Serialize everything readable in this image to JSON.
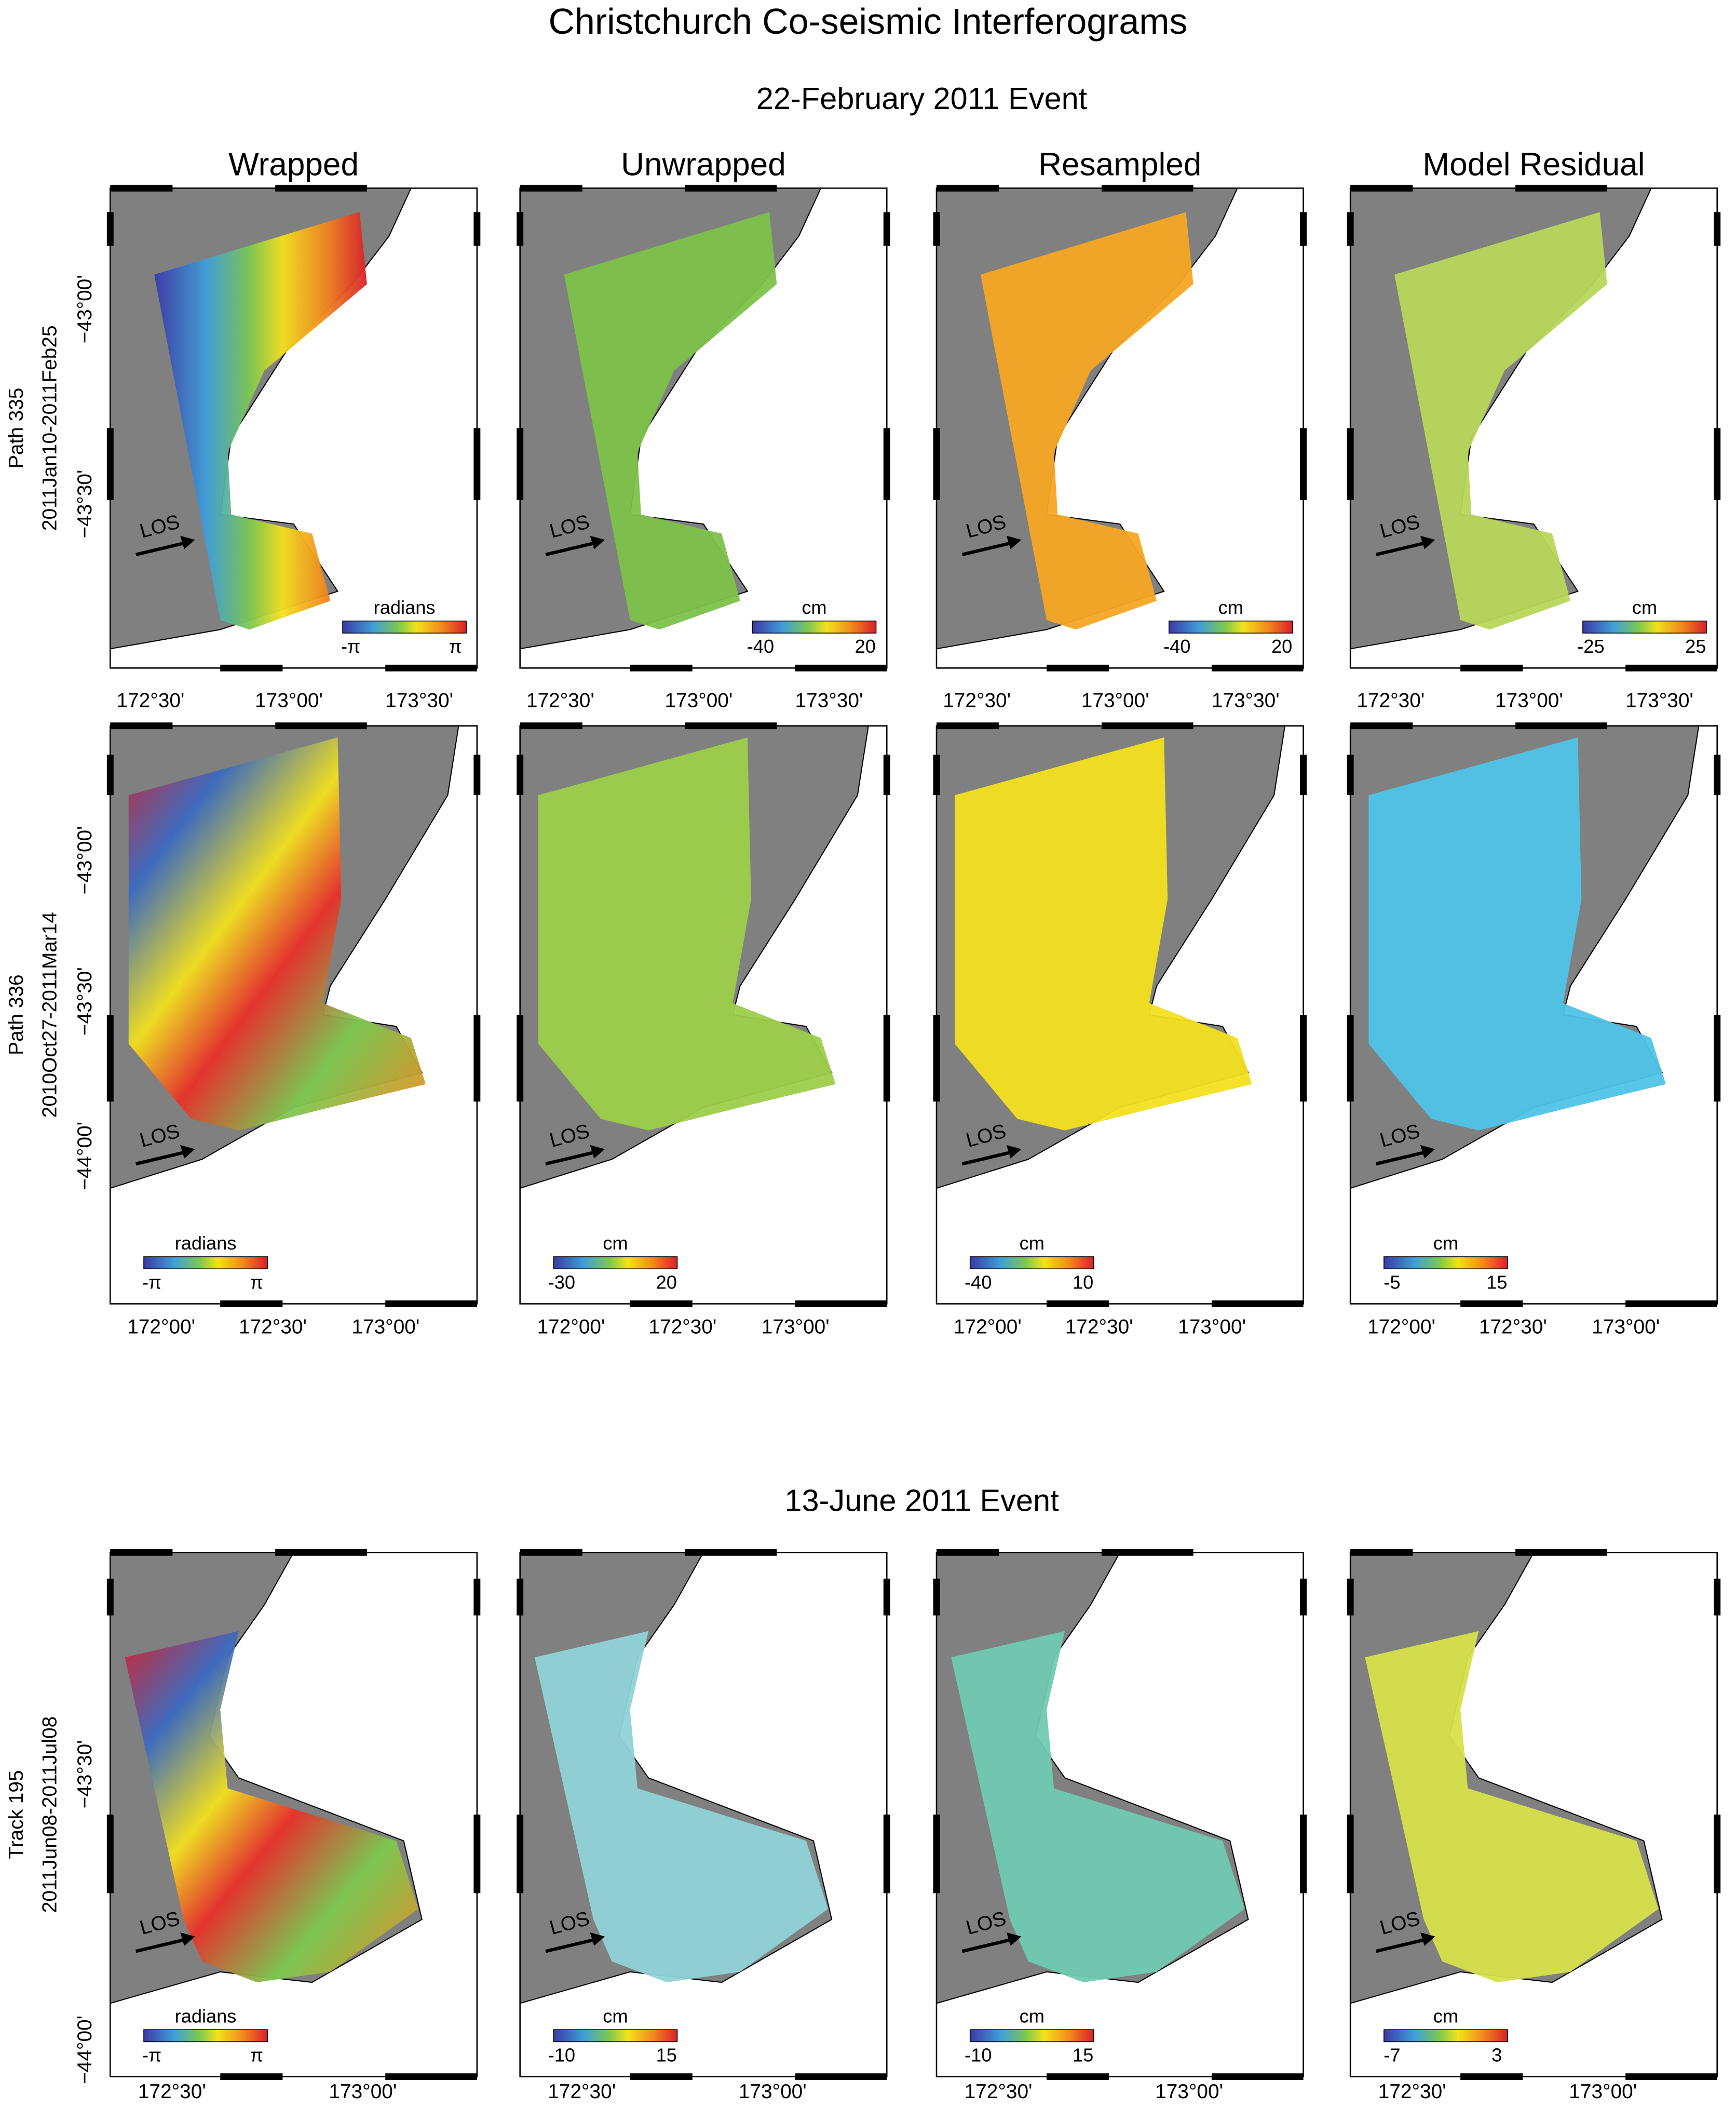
{
  "title": "Christchurch Co-seismic Interferograms",
  "events": [
    {
      "title": "22-February 2011 Event",
      "columns": [
        "Wrapped",
        "Unwrapped",
        "Resampled",
        "Model Residual"
      ],
      "rows": [
        {
          "track": "Path 335",
          "dates": "2011Jan10-2011Feb25",
          "lat_ticks": [
            "−43°00'",
            "−43°30'"
          ],
          "lon_ticks": [
            "172°30'",
            "173°00'",
            "173°30'"
          ],
          "los": "LOS",
          "colorbars": [
            {
              "unit": "radians",
              "min": "-π",
              "max": "π"
            },
            {
              "unit": "cm",
              "min": -40,
              "max": 20
            },
            {
              "unit": "cm",
              "min": -40,
              "max": 20
            },
            {
              "unit": "cm",
              "min": -25,
              "max": 25
            }
          ]
        },
        {
          "track": "Path 336",
          "dates": "2010Oct27-2011Mar14",
          "lat_ticks": [
            "−43°00'",
            "−43°30'",
            "−44°00'"
          ],
          "lon_ticks": [
            "172°00'",
            "172°30'",
            "173°00'"
          ],
          "los": "LOS",
          "colorbars": [
            {
              "unit": "radians",
              "min": "-π",
              "max": "π"
            },
            {
              "unit": "cm",
              "min": -30,
              "max": 20
            },
            {
              "unit": "cm",
              "min": -40,
              "max": 10
            },
            {
              "unit": "cm",
              "min": -5,
              "max": 15
            }
          ]
        }
      ]
    },
    {
      "title": "13-June 2011 Event",
      "rows": [
        {
          "track": "Track 195",
          "dates": "2011Jun08-2011Jul08",
          "lat_ticks": [
            "−43°30'",
            "−44°00'"
          ],
          "lon_ticks": [
            "172°30'",
            "173°00'"
          ],
          "los": "LOS",
          "colorbars": [
            {
              "unit": "radians",
              "min": "-π",
              "max": "π"
            },
            {
              "unit": "cm",
              "min": -10,
              "max": 15
            },
            {
              "unit": "cm",
              "min": -10,
              "max": 15
            },
            {
              "unit": "cm",
              "min": -7,
              "max": 3
            }
          ]
        }
      ]
    }
  ]
}
